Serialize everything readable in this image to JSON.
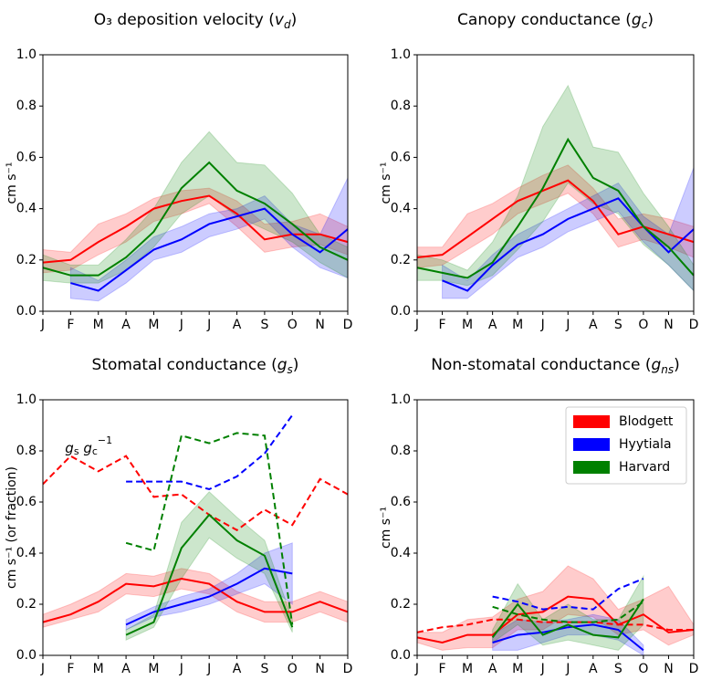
{
  "chart_data": [
    {
      "type": "line",
      "title": [
        "O₃ deposition velocity  (",
        "v",
        "d",
        ")"
      ],
      "ylabel": "cm s⁻¹",
      "categories": [
        "J",
        "F",
        "M",
        "A",
        "M",
        "J",
        "J",
        "A",
        "S",
        "O",
        "N",
        "D"
      ],
      "ylim": [
        0,
        1
      ],
      "yticks": [
        {
          "value": 0,
          "label": "0.0"
        },
        {
          "value": 0.2,
          "label": "0.2"
        },
        {
          "value": 0.4,
          "label": "0.4"
        },
        {
          "value": 0.6,
          "label": "0.6"
        },
        {
          "value": 0.8,
          "label": "0.8"
        },
        {
          "value": 1,
          "label": "1.0"
        }
      ],
      "series": [
        {
          "color": "#ff0000",
          "values": [
            0.19,
            0.2,
            0.27,
            0.33,
            0.4,
            0.43,
            0.45,
            0.38,
            0.28,
            0.3,
            0.3,
            0.27
          ],
          "lower": [
            0.15,
            0.16,
            0.22,
            0.27,
            0.35,
            0.38,
            0.42,
            0.33,
            0.23,
            0.25,
            0.26,
            0.22
          ],
          "upper": [
            0.24,
            0.23,
            0.34,
            0.38,
            0.44,
            0.47,
            0.48,
            0.43,
            0.34,
            0.35,
            0.38,
            0.33
          ]
        },
        {
          "color": "#0000ff",
          "values": [
            null,
            0.11,
            0.08,
            0.16,
            0.24,
            0.28,
            0.34,
            0.37,
            0.4,
            0.3,
            0.23,
            0.32
          ],
          "lower": [
            null,
            0.05,
            0.04,
            0.11,
            0.2,
            0.23,
            0.29,
            0.32,
            0.36,
            0.25,
            0.17,
            0.13
          ],
          "upper": [
            null,
            0.17,
            0.12,
            0.2,
            0.29,
            0.33,
            0.38,
            0.4,
            0.45,
            0.34,
            0.3,
            0.52
          ]
        },
        {
          "color": "#008000",
          "values": [
            0.17,
            0.14,
            0.14,
            0.21,
            0.31,
            0.48,
            0.58,
            0.47,
            0.42,
            0.34,
            0.25,
            0.2
          ],
          "lower": [
            0.12,
            0.11,
            0.11,
            0.16,
            0.25,
            0.38,
            0.45,
            0.37,
            0.32,
            0.27,
            0.19,
            0.13
          ],
          "upper": [
            0.22,
            0.18,
            0.18,
            0.28,
            0.4,
            0.58,
            0.7,
            0.58,
            0.57,
            0.46,
            0.3,
            0.25
          ]
        }
      ]
    },
    {
      "type": "line",
      "title": [
        "Canopy conductance  (",
        "g",
        "c",
        ")"
      ],
      "ylabel": "cm s⁻¹",
      "categories": [
        "J",
        "F",
        "M",
        "A",
        "M",
        "J",
        "J",
        "A",
        "S",
        "O",
        "N",
        "D"
      ],
      "ylim": [
        0,
        1
      ],
      "yticks": [
        {
          "value": 0,
          "label": "0.0"
        },
        {
          "value": 0.2,
          "label": "0.2"
        },
        {
          "value": 0.4,
          "label": "0.4"
        },
        {
          "value": 0.6,
          "label": "0.6"
        },
        {
          "value": 0.8,
          "label": "0.8"
        },
        {
          "value": 1,
          "label": "1.0"
        }
      ],
      "series": [
        {
          "color": "#ff0000",
          "values": [
            0.21,
            0.22,
            0.29,
            0.36,
            0.43,
            0.47,
            0.51,
            0.43,
            0.3,
            0.33,
            0.3,
            0.27
          ],
          "lower": [
            0.17,
            0.18,
            0.24,
            0.3,
            0.38,
            0.42,
            0.46,
            0.38,
            0.25,
            0.28,
            0.25,
            0.21
          ],
          "upper": [
            0.25,
            0.25,
            0.38,
            0.42,
            0.48,
            0.53,
            0.57,
            0.48,
            0.36,
            0.38,
            0.36,
            0.33
          ]
        },
        {
          "color": "#0000ff",
          "values": [
            null,
            0.12,
            0.08,
            0.18,
            0.26,
            0.3,
            0.36,
            0.4,
            0.44,
            0.33,
            0.23,
            0.32
          ],
          "lower": [
            null,
            0.05,
            0.05,
            0.13,
            0.21,
            0.25,
            0.31,
            0.35,
            0.39,
            0.27,
            0.18,
            0.08
          ],
          "upper": [
            null,
            0.18,
            0.12,
            0.22,
            0.3,
            0.35,
            0.4,
            0.45,
            0.5,
            0.37,
            0.3,
            0.56
          ]
        },
        {
          "color": "#008000",
          "values": [
            0.17,
            0.15,
            0.13,
            0.19,
            0.33,
            0.48,
            0.67,
            0.52,
            0.47,
            0.33,
            0.25,
            0.14
          ],
          "lower": [
            0.12,
            0.12,
            0.1,
            0.14,
            0.24,
            0.35,
            0.5,
            0.42,
            0.38,
            0.26,
            0.18,
            0.08
          ],
          "upper": [
            0.22,
            0.2,
            0.16,
            0.27,
            0.45,
            0.72,
            0.88,
            0.64,
            0.62,
            0.46,
            0.33,
            0.18
          ]
        }
      ]
    },
    {
      "type": "line",
      "title": [
        "Stomatal conductance  (",
        "g",
        "s",
        ")"
      ],
      "ylabel": "cm s⁻¹ (or fraction)",
      "annotation": [
        "g",
        "s",
        " g",
        "c",
        "−1"
      ],
      "categories": [
        "J",
        "F",
        "M",
        "A",
        "M",
        "J",
        "J",
        "A",
        "S",
        "O",
        "N",
        "D"
      ],
      "ylim": [
        0,
        1
      ],
      "yticks": [
        {
          "value": 0,
          "label": "0.0"
        },
        {
          "value": 0.2,
          "label": "0.2"
        },
        {
          "value": 0.4,
          "label": "0.4"
        },
        {
          "value": 0.6,
          "label": "0.6"
        },
        {
          "value": 0.8,
          "label": "0.8"
        },
        {
          "value": 1,
          "label": "1.0"
        }
      ],
      "series": [
        {
          "color": "#ff0000",
          "values": [
            0.13,
            0.16,
            0.21,
            0.28,
            0.27,
            0.3,
            0.28,
            0.21,
            0.17,
            0.17,
            0.21,
            0.17
          ],
          "lower": [
            0.11,
            0.14,
            0.17,
            0.24,
            0.23,
            0.26,
            0.24,
            0.17,
            0.13,
            0.13,
            0.17,
            0.13
          ],
          "upper": [
            0.16,
            0.2,
            0.25,
            0.32,
            0.31,
            0.34,
            0.32,
            0.25,
            0.21,
            0.21,
            0.25,
            0.21
          ],
          "ratio_values": [
            0.67,
            0.78,
            0.72,
            0.78,
            0.62,
            0.63,
            0.55,
            0.49,
            0.57,
            0.51,
            0.69,
            0.63
          ]
        },
        {
          "color": "#0000ff",
          "values": [
            null,
            null,
            null,
            0.12,
            0.17,
            0.2,
            0.23,
            0.28,
            0.34,
            0.32,
            null,
            null
          ],
          "lower": [
            null,
            null,
            null,
            0.1,
            0.15,
            0.17,
            0.2,
            0.24,
            0.28,
            0.2,
            null,
            null
          ],
          "upper": [
            null,
            null,
            null,
            0.14,
            0.19,
            0.23,
            0.26,
            0.32,
            0.4,
            0.44,
            null,
            null
          ],
          "ratio_values": [
            null,
            null,
            null,
            0.68,
            0.68,
            0.68,
            0.65,
            0.7,
            0.79,
            0.94,
            null,
            null
          ]
        },
        {
          "color": "#008000",
          "values": [
            null,
            null,
            null,
            0.08,
            0.13,
            0.42,
            0.55,
            0.45,
            0.39,
            0.11,
            null,
            null
          ],
          "lower": [
            null,
            null,
            null,
            0.06,
            0.11,
            0.3,
            0.46,
            0.38,
            0.32,
            0.09,
            null,
            null
          ],
          "upper": [
            null,
            null,
            null,
            0.1,
            0.16,
            0.52,
            0.64,
            0.54,
            0.45,
            0.14,
            null,
            null
          ],
          "ratio_values": [
            null,
            null,
            null,
            0.44,
            0.41,
            0.86,
            0.83,
            0.87,
            0.86,
            0.12,
            null,
            null
          ]
        }
      ]
    },
    {
      "type": "line",
      "title": [
        "Non-stomatal conductance  (",
        "g",
        "ns",
        ")"
      ],
      "ylabel": "cm s⁻¹",
      "legend": "upper right",
      "categories": [
        "J",
        "F",
        "M",
        "A",
        "M",
        "J",
        "J",
        "A",
        "S",
        "O",
        "N",
        "D"
      ],
      "ylim": [
        0,
        1
      ],
      "yticks": [
        {
          "value": 0,
          "label": "0.0"
        },
        {
          "value": 0.2,
          "label": "0.2"
        },
        {
          "value": 0.4,
          "label": "0.4"
        },
        {
          "value": 0.6,
          "label": "0.6"
        },
        {
          "value": 0.8,
          "label": "0.8"
        },
        {
          "value": 1,
          "label": "1.0"
        }
      ],
      "series": [
        {
          "name": "Blodgett",
          "color": "#ff0000",
          "values": [
            0.07,
            0.05,
            0.08,
            0.08,
            0.16,
            0.17,
            0.23,
            0.22,
            0.12,
            0.16,
            0.09,
            0.1
          ],
          "lower": [
            0.05,
            0.02,
            0.03,
            0.03,
            0.1,
            0.1,
            0.16,
            0.15,
            0.08,
            0.1,
            0.04,
            0.08
          ],
          "upper": [
            0.09,
            0.09,
            0.14,
            0.15,
            0.22,
            0.25,
            0.35,
            0.3,
            0.18,
            0.22,
            0.27,
            0.12
          ],
          "ratio_values": [
            0.09,
            0.11,
            0.12,
            0.14,
            0.14,
            0.13,
            0.13,
            0.13,
            0.12,
            0.12,
            0.1,
            0.1
          ]
        },
        {
          "name": "Hyytiala",
          "color": "#0000ff",
          "values": [
            null,
            null,
            null,
            0.05,
            0.08,
            0.09,
            0.11,
            0.12,
            0.1,
            0.02,
            null,
            null
          ],
          "lower": [
            null,
            null,
            null,
            0.02,
            0.02,
            0.05,
            0.08,
            0.08,
            0.06,
            0.0,
            null,
            null
          ],
          "upper": [
            null,
            null,
            null,
            0.08,
            0.14,
            0.13,
            0.14,
            0.16,
            0.14,
            0.04,
            null,
            null
          ],
          "ratio_values": [
            null,
            null,
            null,
            0.23,
            0.21,
            0.18,
            0.19,
            0.18,
            0.26,
            0.3,
            null,
            null
          ]
        },
        {
          "name": "Harvard",
          "color": "#008000",
          "values": [
            null,
            null,
            null,
            0.07,
            0.2,
            0.08,
            0.12,
            0.08,
            0.07,
            0.22,
            null,
            null
          ],
          "lower": [
            null,
            null,
            null,
            0.05,
            0.12,
            0.04,
            0.06,
            0.04,
            0.02,
            0.12,
            null,
            null
          ],
          "upper": [
            null,
            null,
            null,
            0.1,
            0.28,
            0.14,
            0.2,
            0.14,
            0.14,
            0.31,
            null,
            null
          ],
          "ratio_values": [
            null,
            null,
            null,
            0.19,
            0.16,
            0.14,
            0.13,
            0.13,
            0.14,
            0.21,
            null,
            null
          ]
        }
      ]
    }
  ]
}
